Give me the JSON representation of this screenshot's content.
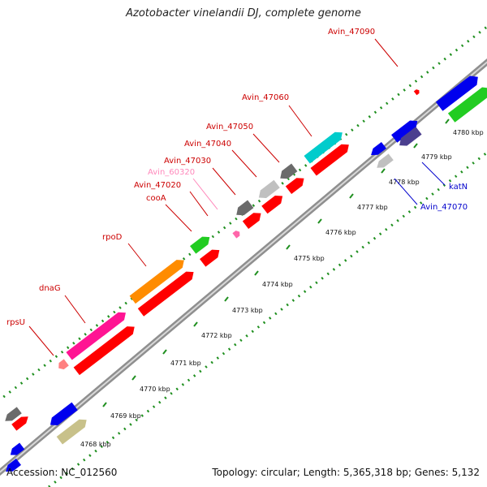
{
  "title": "Azotobacter vinelandii DJ, complete genome",
  "footer": {
    "accession": "Accession: NC_012560",
    "summary": "Topology: circular; Length: 5,365,318 bp; Genes: 5,132"
  },
  "colors": {
    "background": "#ffffff",
    "backbone": "#8f8f8f",
    "tick_dots": "#1f8f1f",
    "label_red": "#cc0000",
    "label_blue": "#0000cc",
    "label_pink": "#ff88bb"
  },
  "tick_labels": [
    "4768 kbp",
    "4769 kbp",
    "4770 kbp",
    "4771 kbp",
    "4772 kbp",
    "4773 kbp",
    "4774 kbp",
    "4775 kbp",
    "4776 kbp",
    "4777 kbp",
    "4778 kbp",
    "4779 kbp",
    "4780 kbp"
  ],
  "gene_labels": [
    {
      "text": "rpsU",
      "color": "red"
    },
    {
      "text": "dnaG",
      "color": "red"
    },
    {
      "text": "rpoD",
      "color": "red"
    },
    {
      "text": "cooA",
      "color": "red"
    },
    {
      "text": "Avin_47020",
      "color": "red"
    },
    {
      "text": "Avin_60320",
      "color": "pink"
    },
    {
      "text": "Avin_47030",
      "color": "red"
    },
    {
      "text": "Avin_47040",
      "color": "red"
    },
    {
      "text": "Avin_47050",
      "color": "red"
    },
    {
      "text": "Avin_47060",
      "color": "red"
    },
    {
      "text": "Avin_47090",
      "color": "red"
    },
    {
      "text": "katN",
      "color": "blue"
    },
    {
      "text": "Avin_47070",
      "color": "blue"
    }
  ],
  "features": [
    {
      "color": "#6b6b6b"
    },
    {
      "color": "#ff0000"
    },
    {
      "color": "#0000ee"
    },
    {
      "color": "#c8c18a"
    },
    {
      "color": "#ff8080"
    },
    {
      "color": "#ff1493"
    },
    {
      "color": "#ff0000"
    },
    {
      "color": "#ff8c00"
    },
    {
      "color": "#ff0000"
    },
    {
      "color": "#22cc22"
    },
    {
      "color": "#ff0000"
    },
    {
      "color": "#ff66aa"
    },
    {
      "color": "#6b6b6b"
    },
    {
      "color": "#ff0000"
    },
    {
      "color": "#c0c0c0"
    },
    {
      "color": "#ff0000"
    },
    {
      "color": "#6b6b6b"
    },
    {
      "color": "#ff0000"
    },
    {
      "color": "#00cccc"
    },
    {
      "color": "#ff0000"
    },
    {
      "color": "#0000ee"
    },
    {
      "color": "#c0c0c0"
    },
    {
      "color": "#0000ee"
    },
    {
      "color": "#4b3f8f"
    },
    {
      "color": "#0000ee"
    },
    {
      "color": "#22cc22"
    },
    {
      "color": "#ff0000"
    },
    {
      "color": "#0000ee"
    },
    {
      "color": "#0000ee"
    }
  ]
}
